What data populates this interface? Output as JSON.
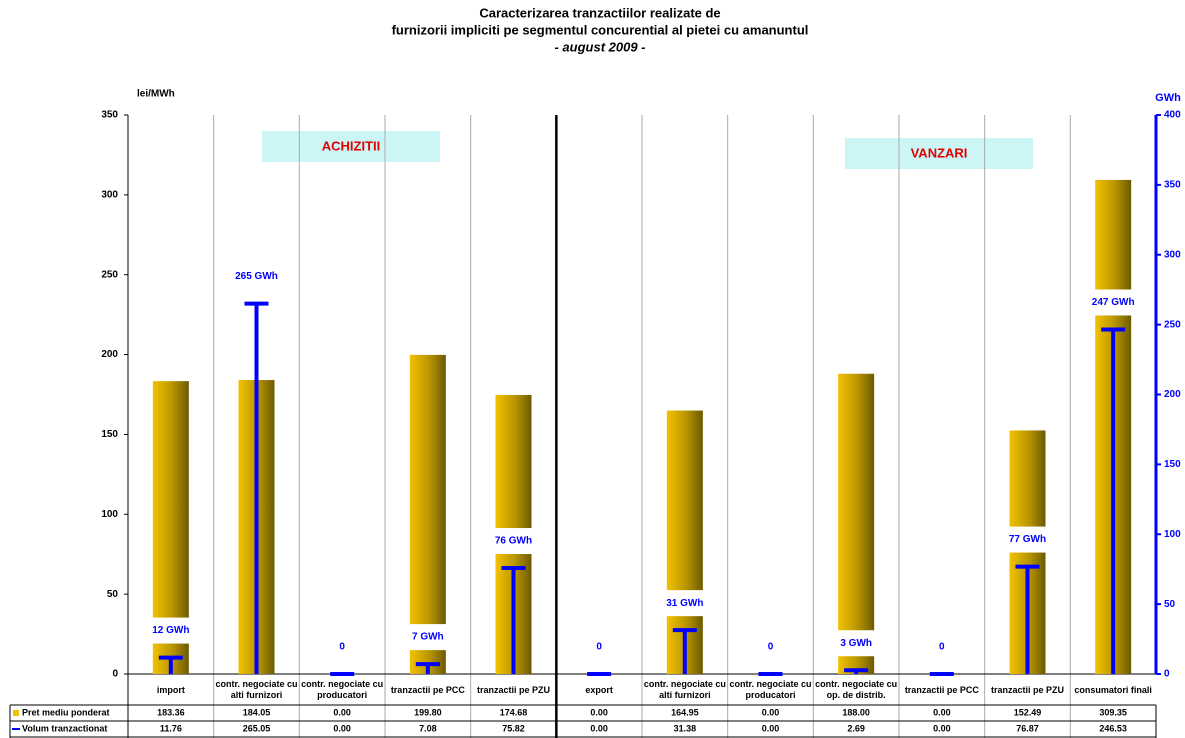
{
  "chart_data": {
    "type": "bar",
    "title": [
      "Caracterizarea tranzactiilor realizate de",
      "furnizorii impliciti pe segmentul concurential al pietei cu amanuntul"
    ],
    "subtitle": "- august 2009 -",
    "y_label": "lei/MWh",
    "y2_label": "GWh",
    "annotations": [
      "ACHIZITII",
      "VANZARI"
    ],
    "categories": [
      "import",
      "contr. negociate cu alti furnizori",
      "contr. negociate cu producatori",
      "tranzactii pe PCC",
      "tranzactii pe PZU",
      "export",
      "contr. negociate cu alti furnizori",
      "contr. negociate cu producatori",
      "contr. negociate cu op. de distrib.",
      "tranzactii pe PCC",
      "tranzactii pe PZU",
      "consumatori finali"
    ],
    "series": [
      {
        "name": "Pret mediu ponderat",
        "color": "#f2c200",
        "values": [
          183.36,
          184.05,
          0.0,
          199.8,
          174.68,
          0.0,
          164.95,
          0.0,
          188.0,
          0.0,
          152.49,
          309.35
        ],
        "table_labels": [
          "183.36",
          "184.05",
          "0.00",
          "199.80",
          "174.68",
          "0.00",
          "164.95",
          "0.00",
          "188.00",
          "0.00",
          "152.49",
          "309.35"
        ]
      },
      {
        "name": "Volum tranzactionat",
        "color": "#0000ff",
        "axis": "y2",
        "values": [
          11.76,
          265.05,
          0.0,
          7.08,
          75.82,
          0.0,
          31.38,
          0.0,
          2.69,
          0.0,
          76.87,
          246.53
        ],
        "value_labels": [
          "12 GWh",
          "265 GWh",
          "0",
          "7 GWh",
          "76 GWh",
          "0",
          "31 GWh",
          "0",
          "3 GWh",
          "0",
          "77 GWh",
          "247 GWh"
        ],
        "table_labels": [
          "11.76",
          "265.05",
          "0.00",
          "7.08",
          "75.82",
          "0.00",
          "31.38",
          "0.00",
          "2.69",
          "0.00",
          "76.87",
          "246.53"
        ]
      }
    ],
    "ylim": [
      0,
      350
    ],
    "yticks": [
      0,
      50,
      100,
      150,
      200,
      250,
      300,
      350
    ],
    "y2lim": [
      0,
      400
    ],
    "y2ticks": [
      0,
      50,
      100,
      150,
      200,
      250,
      300,
      350,
      400
    ],
    "grid": true
  }
}
